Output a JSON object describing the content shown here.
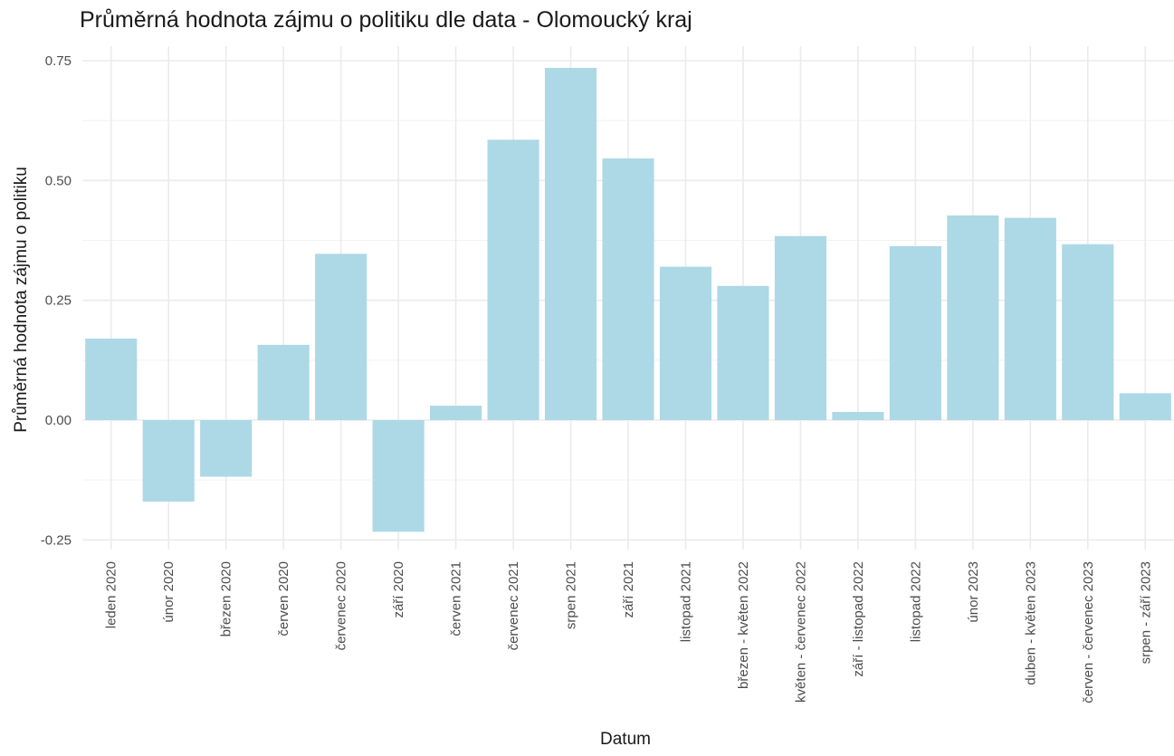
{
  "chart_data": {
    "type": "bar",
    "title": "Průměrná hodnota zájmu o politiku dle data - Olomoucký kraj",
    "xlabel": "Datum",
    "ylabel": "Průměrná hodnota zájmu o politiku",
    "ylim": [
      -0.27,
      0.78
    ],
    "yticks": [
      -0.25,
      0.0,
      0.25,
      0.5,
      0.75
    ],
    "ytick_labels": [
      "-0.25",
      "0.00",
      "0.25",
      "0.50",
      "0.75"
    ],
    "grid": true,
    "bar_color": "#add8e6",
    "categories": [
      "leden 2020",
      "únor 2020",
      "březen 2020",
      "červen 2020",
      "červenec 2020",
      "září 2020",
      "červen 2021",
      "červenec 2021",
      "srpen 2021",
      "září 2021",
      "listopad 2021",
      "březen - květen 2022",
      "květen - červenec 2022",
      "září - listopad 2022",
      "listopad 2022",
      "únor 2023",
      "duben - květen 2023",
      "červen - červenec 2023",
      "srpen - září 2023"
    ],
    "values": [
      0.17,
      -0.17,
      -0.118,
      0.157,
      0.347,
      -0.233,
      0.03,
      0.585,
      0.735,
      0.546,
      0.32,
      0.28,
      0.384,
      0.017,
      0.363,
      0.427,
      0.422,
      0.367,
      0.056
    ]
  }
}
